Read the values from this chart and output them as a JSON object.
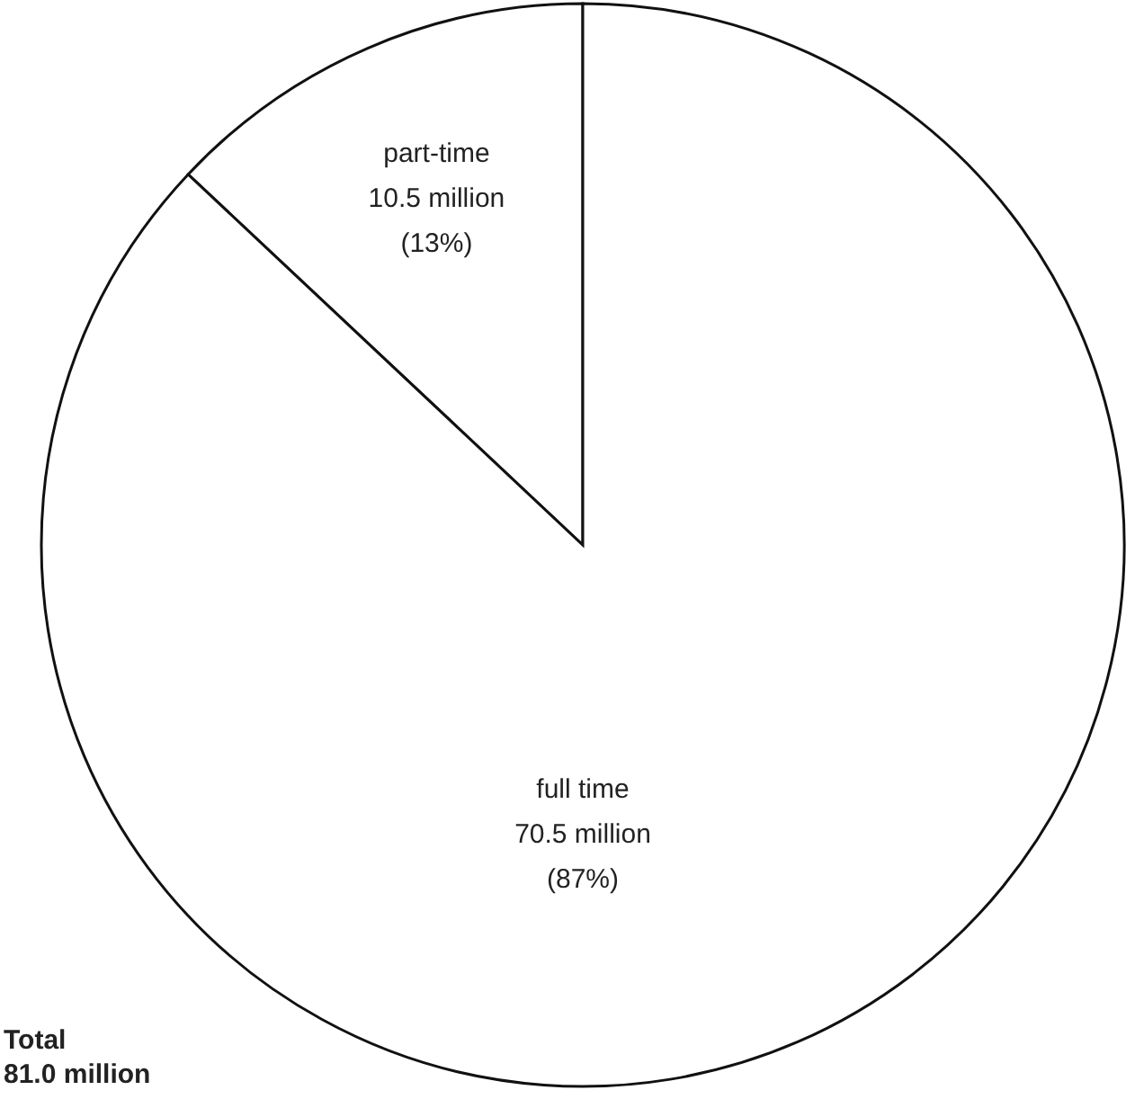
{
  "chart_data": {
    "type": "pie",
    "categories": [
      "part-time",
      "full time"
    ],
    "values": [
      13,
      87
    ],
    "colors": [
      "#ffffff",
      "#ffffff"
    ],
    "value_labels": [
      "10.5 million\n(13%)",
      "70.5 million\n(87%)"
    ],
    "annotations": [
      "Total\n81.0 million"
    ]
  }
}
